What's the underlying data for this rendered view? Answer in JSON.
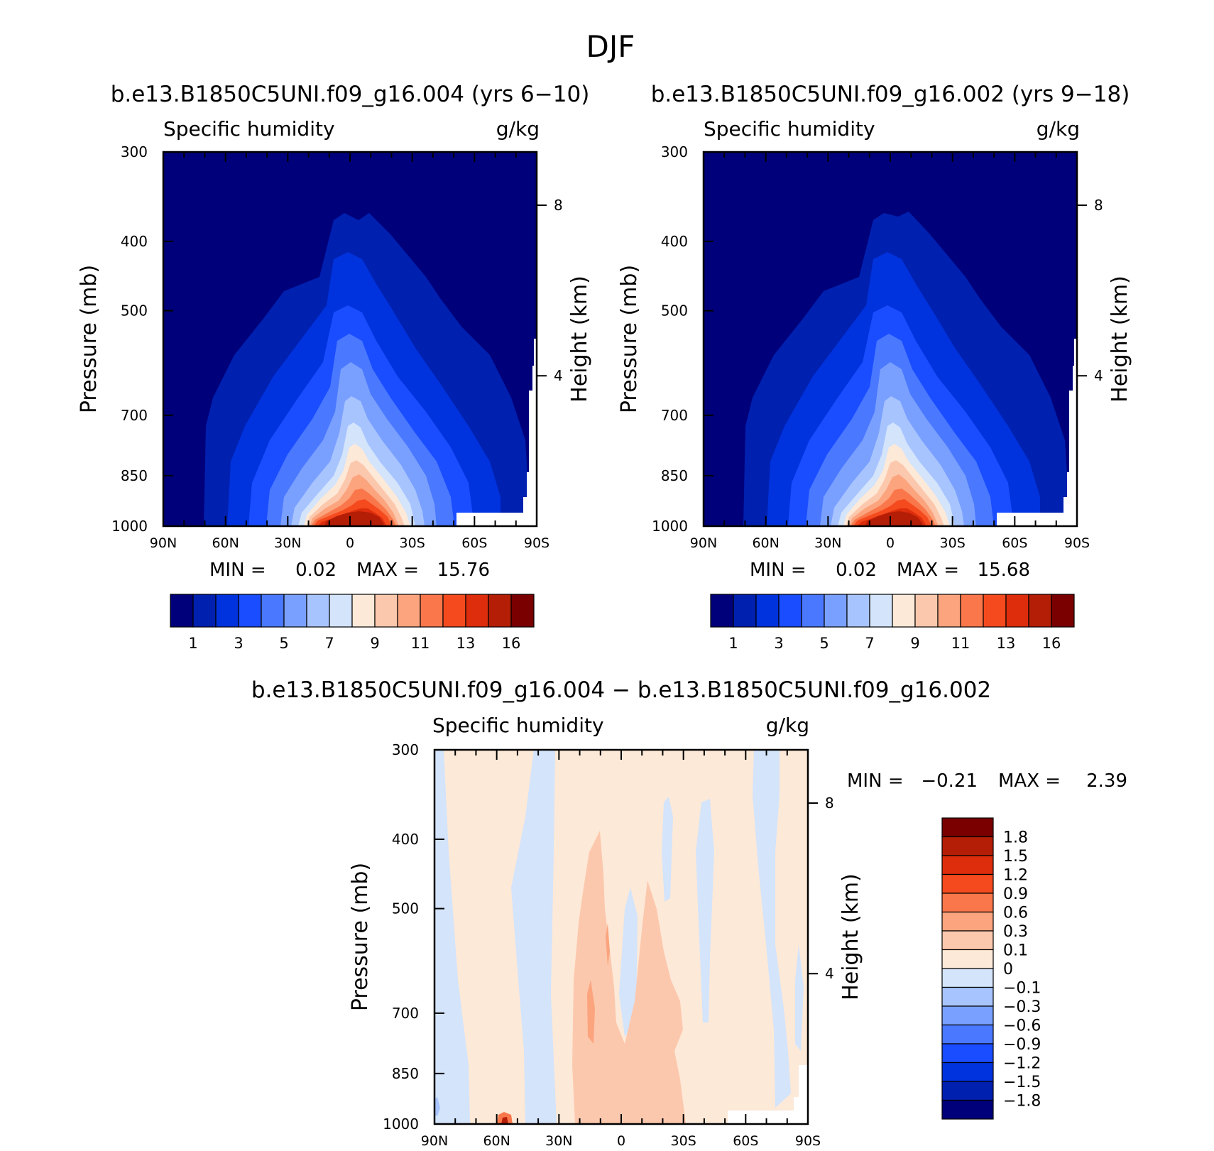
{
  "figure_title": "DJF",
  "colors": {
    "abs_levels": [
      "#00007a",
      "#0020b0",
      "#0033dd",
      "#1a4dff",
      "#4a78ff",
      "#7aa0ff",
      "#a8c4ff",
      "#d3e4fb",
      "#fde9d8",
      "#fcc8ad",
      "#fba47e",
      "#f9774a",
      "#f44a1e",
      "#dd2d0c",
      "#b51e06",
      "#7a0000"
    ],
    "diff_levels": [
      "#00007a",
      "#0020b0",
      "#0033dd",
      "#1a4dff",
      "#4a78ff",
      "#7aa0ff",
      "#a8c4ff",
      "#d3e4fb",
      "#fde9d8",
      "#fcc8ad",
      "#fba47e",
      "#f9774a",
      "#f44a1e",
      "#dd2d0c",
      "#b51e06",
      "#7a0000"
    ]
  },
  "panels": [
    {
      "case": "b.e13.B1850C5UNI.f09_g16.004 (yrs 6−10)",
      "variable": "Specific humidity",
      "units": "g/kg",
      "ylabel": "Pressure (mb)",
      "ylabel_right": "Height (km)",
      "min_label": "MIN =",
      "min_value": "0.02",
      "max_label": "MAX =",
      "max_value": "15.76"
    },
    {
      "case": "b.e13.B1850C5UNI.f09_g16.002 (yrs 9−18)",
      "variable": "Specific humidity",
      "units": "g/kg",
      "ylabel": "Pressure (mb)",
      "ylabel_right": "Height (km)",
      "min_label": "MIN =",
      "min_value": "0.02",
      "max_label": "MAX =",
      "max_value": "15.68"
    },
    {
      "case": "b.e13.B1850C5UNI.f09_g16.004 − b.e13.B1850C5UNI.f09_g16.002",
      "variable": "Specific humidity",
      "units": "g/kg",
      "ylabel": "Pressure (mb)",
      "ylabel_right": "Height (km)",
      "min_label": "MIN =",
      "min_value": "−0.21",
      "max_label": "MAX =",
      "max_value": "2.39"
    }
  ],
  "axes": {
    "x_ticks": [
      "90N",
      "60N",
      "30N",
      "0",
      "30S",
      "60S",
      "90S"
    ],
    "y_ticks": [
      "300",
      "400",
      "500",
      "700",
      "850",
      "1000"
    ],
    "y_right_ticks": [
      "8",
      "4"
    ]
  },
  "abs_colorbar_labels": [
    "1",
    "3",
    "5",
    "7",
    "9",
    "11",
    "13",
    "16"
  ],
  "diff_colorbar_labels": [
    "1.8",
    "1.5",
    "1.2",
    "0.9",
    "0.6",
    "0.3",
    "0.1",
    "0",
    "−0.1",
    "−0.3",
    "−0.6",
    "−0.9",
    "−1.2",
    "−1.5",
    "−1.8"
  ],
  "chart_data": [
    {
      "type": "heatmap",
      "title": "b.e13.B1850C5UNI.f09_g16.004 (yrs 6−10)",
      "variable": "Specific humidity",
      "units": "g/kg",
      "x": [
        "90N",
        "60N",
        "30N",
        "0",
        "30S",
        "60S",
        "90S"
      ],
      "pressure_levels_mb": [
        300,
        400,
        500,
        700,
        850,
        1000
      ],
      "ylim": [
        1000,
        300
      ],
      "contour_levels": [
        1,
        2,
        3,
        4,
        5,
        6,
        7,
        8,
        9,
        10,
        11,
        12,
        13,
        14,
        16
      ],
      "min": 0.02,
      "max": 15.76,
      "max_location": "near 0, 1000 mb"
    },
    {
      "type": "heatmap",
      "title": "b.e13.B1850C5UNI.f09_g16.002 (yrs 9−18)",
      "variable": "Specific humidity",
      "units": "g/kg",
      "x": [
        "90N",
        "60N",
        "30N",
        "0",
        "30S",
        "60S",
        "90S"
      ],
      "pressure_levels_mb": [
        300,
        400,
        500,
        700,
        850,
        1000
      ],
      "ylim": [
        1000,
        300
      ],
      "contour_levels": [
        1,
        2,
        3,
        4,
        5,
        6,
        7,
        8,
        9,
        10,
        11,
        12,
        13,
        14,
        16
      ],
      "min": 0.02,
      "max": 15.68,
      "max_location": "near 0, 1000 mb"
    },
    {
      "type": "heatmap",
      "title": "b.e13.B1850C5UNI.f09_g16.004 − b.e13.B1850C5UNI.f09_g16.002",
      "variable": "Specific humidity",
      "units": "g/kg",
      "x": [
        "90N",
        "60N",
        "30N",
        "0",
        "30S",
        "60S",
        "90S"
      ],
      "pressure_levels_mb": [
        300,
        400,
        500,
        700,
        850,
        1000
      ],
      "ylim": [
        1000,
        300
      ],
      "contour_levels": [
        -1.8,
        -1.5,
        -1.2,
        -0.9,
        -0.6,
        -0.3,
        -0.1,
        0,
        0.1,
        0.3,
        0.6,
        0.9,
        1.2,
        1.5,
        1.8
      ],
      "min": -0.21,
      "max": 2.39
    }
  ]
}
